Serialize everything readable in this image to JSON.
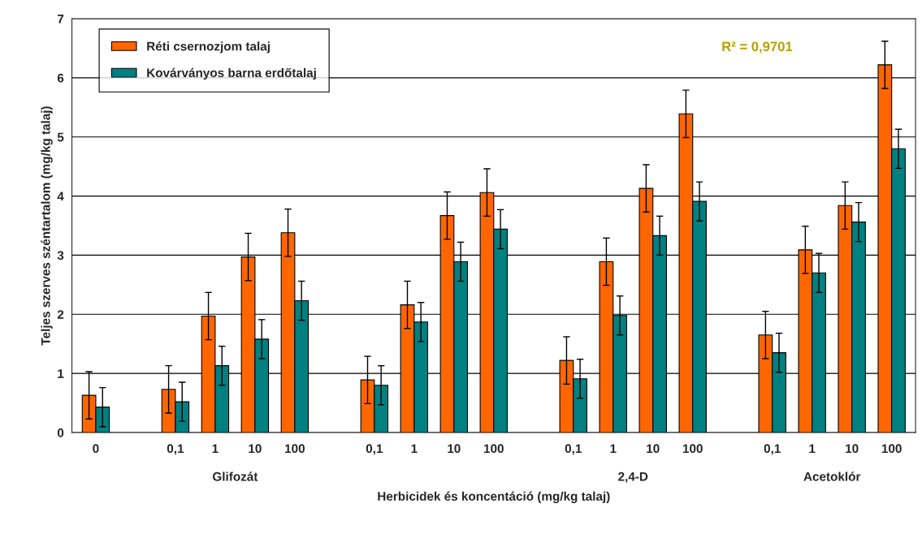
{
  "chart_data": {
    "type": "bar",
    "xlabel": "Herbicidek és koncentáció (mg/kg talaj)",
    "ylabel": "Teljes szerves széntartalom (mg/kg talaj)",
    "categories": [
      "0",
      null,
      "0,1",
      "1",
      "10",
      "100",
      null,
      "0,1",
      "1",
      "10",
      "100",
      null,
      "0,1",
      "1",
      "10",
      "100",
      null,
      "0,1",
      "1",
      "10",
      "100"
    ],
    "series": [
      {
        "name": "Réti csernozjom talaj",
        "color": "#ff6600",
        "values": [
          0.63,
          null,
          0.73,
          1.97,
          2.97,
          3.38,
          null,
          0.89,
          2.16,
          3.67,
          4.06,
          null,
          1.22,
          2.89,
          4.13,
          5.39,
          null,
          1.65,
          3.09,
          3.84,
          6.22
        ],
        "errors": [
          0.4,
          null,
          0.4,
          0.4,
          0.4,
          0.4,
          null,
          0.4,
          0.4,
          0.4,
          0.4,
          null,
          0.4,
          0.4,
          0.4,
          0.4,
          null,
          0.4,
          0.4,
          0.4,
          0.4
        ]
      },
      {
        "name": "Kovárványos barna erdőtalaj",
        "color": "#008080",
        "values": [
          0.43,
          null,
          0.52,
          1.13,
          1.58,
          2.23,
          null,
          0.8,
          1.87,
          2.89,
          3.44,
          null,
          0.91,
          1.98,
          3.33,
          3.91,
          null,
          1.35,
          2.7,
          3.56,
          4.8
        ],
        "errors": [
          0.33,
          null,
          0.33,
          0.33,
          0.33,
          0.33,
          null,
          0.33,
          0.33,
          0.33,
          0.33,
          null,
          0.33,
          0.33,
          0.33,
          0.33,
          null,
          0.33,
          0.33,
          0.33,
          0.33
        ]
      }
    ],
    "annotations": [
      "Glifozát",
      null,
      "2,4-D",
      "Acetoklór",
      "R² = 0,9701"
    ],
    "ylim": [
      0,
      7
    ],
    "yticks": [
      0,
      1,
      2,
      3,
      4,
      5,
      6,
      7
    ],
    "grid": "y",
    "legend": "top left"
  }
}
